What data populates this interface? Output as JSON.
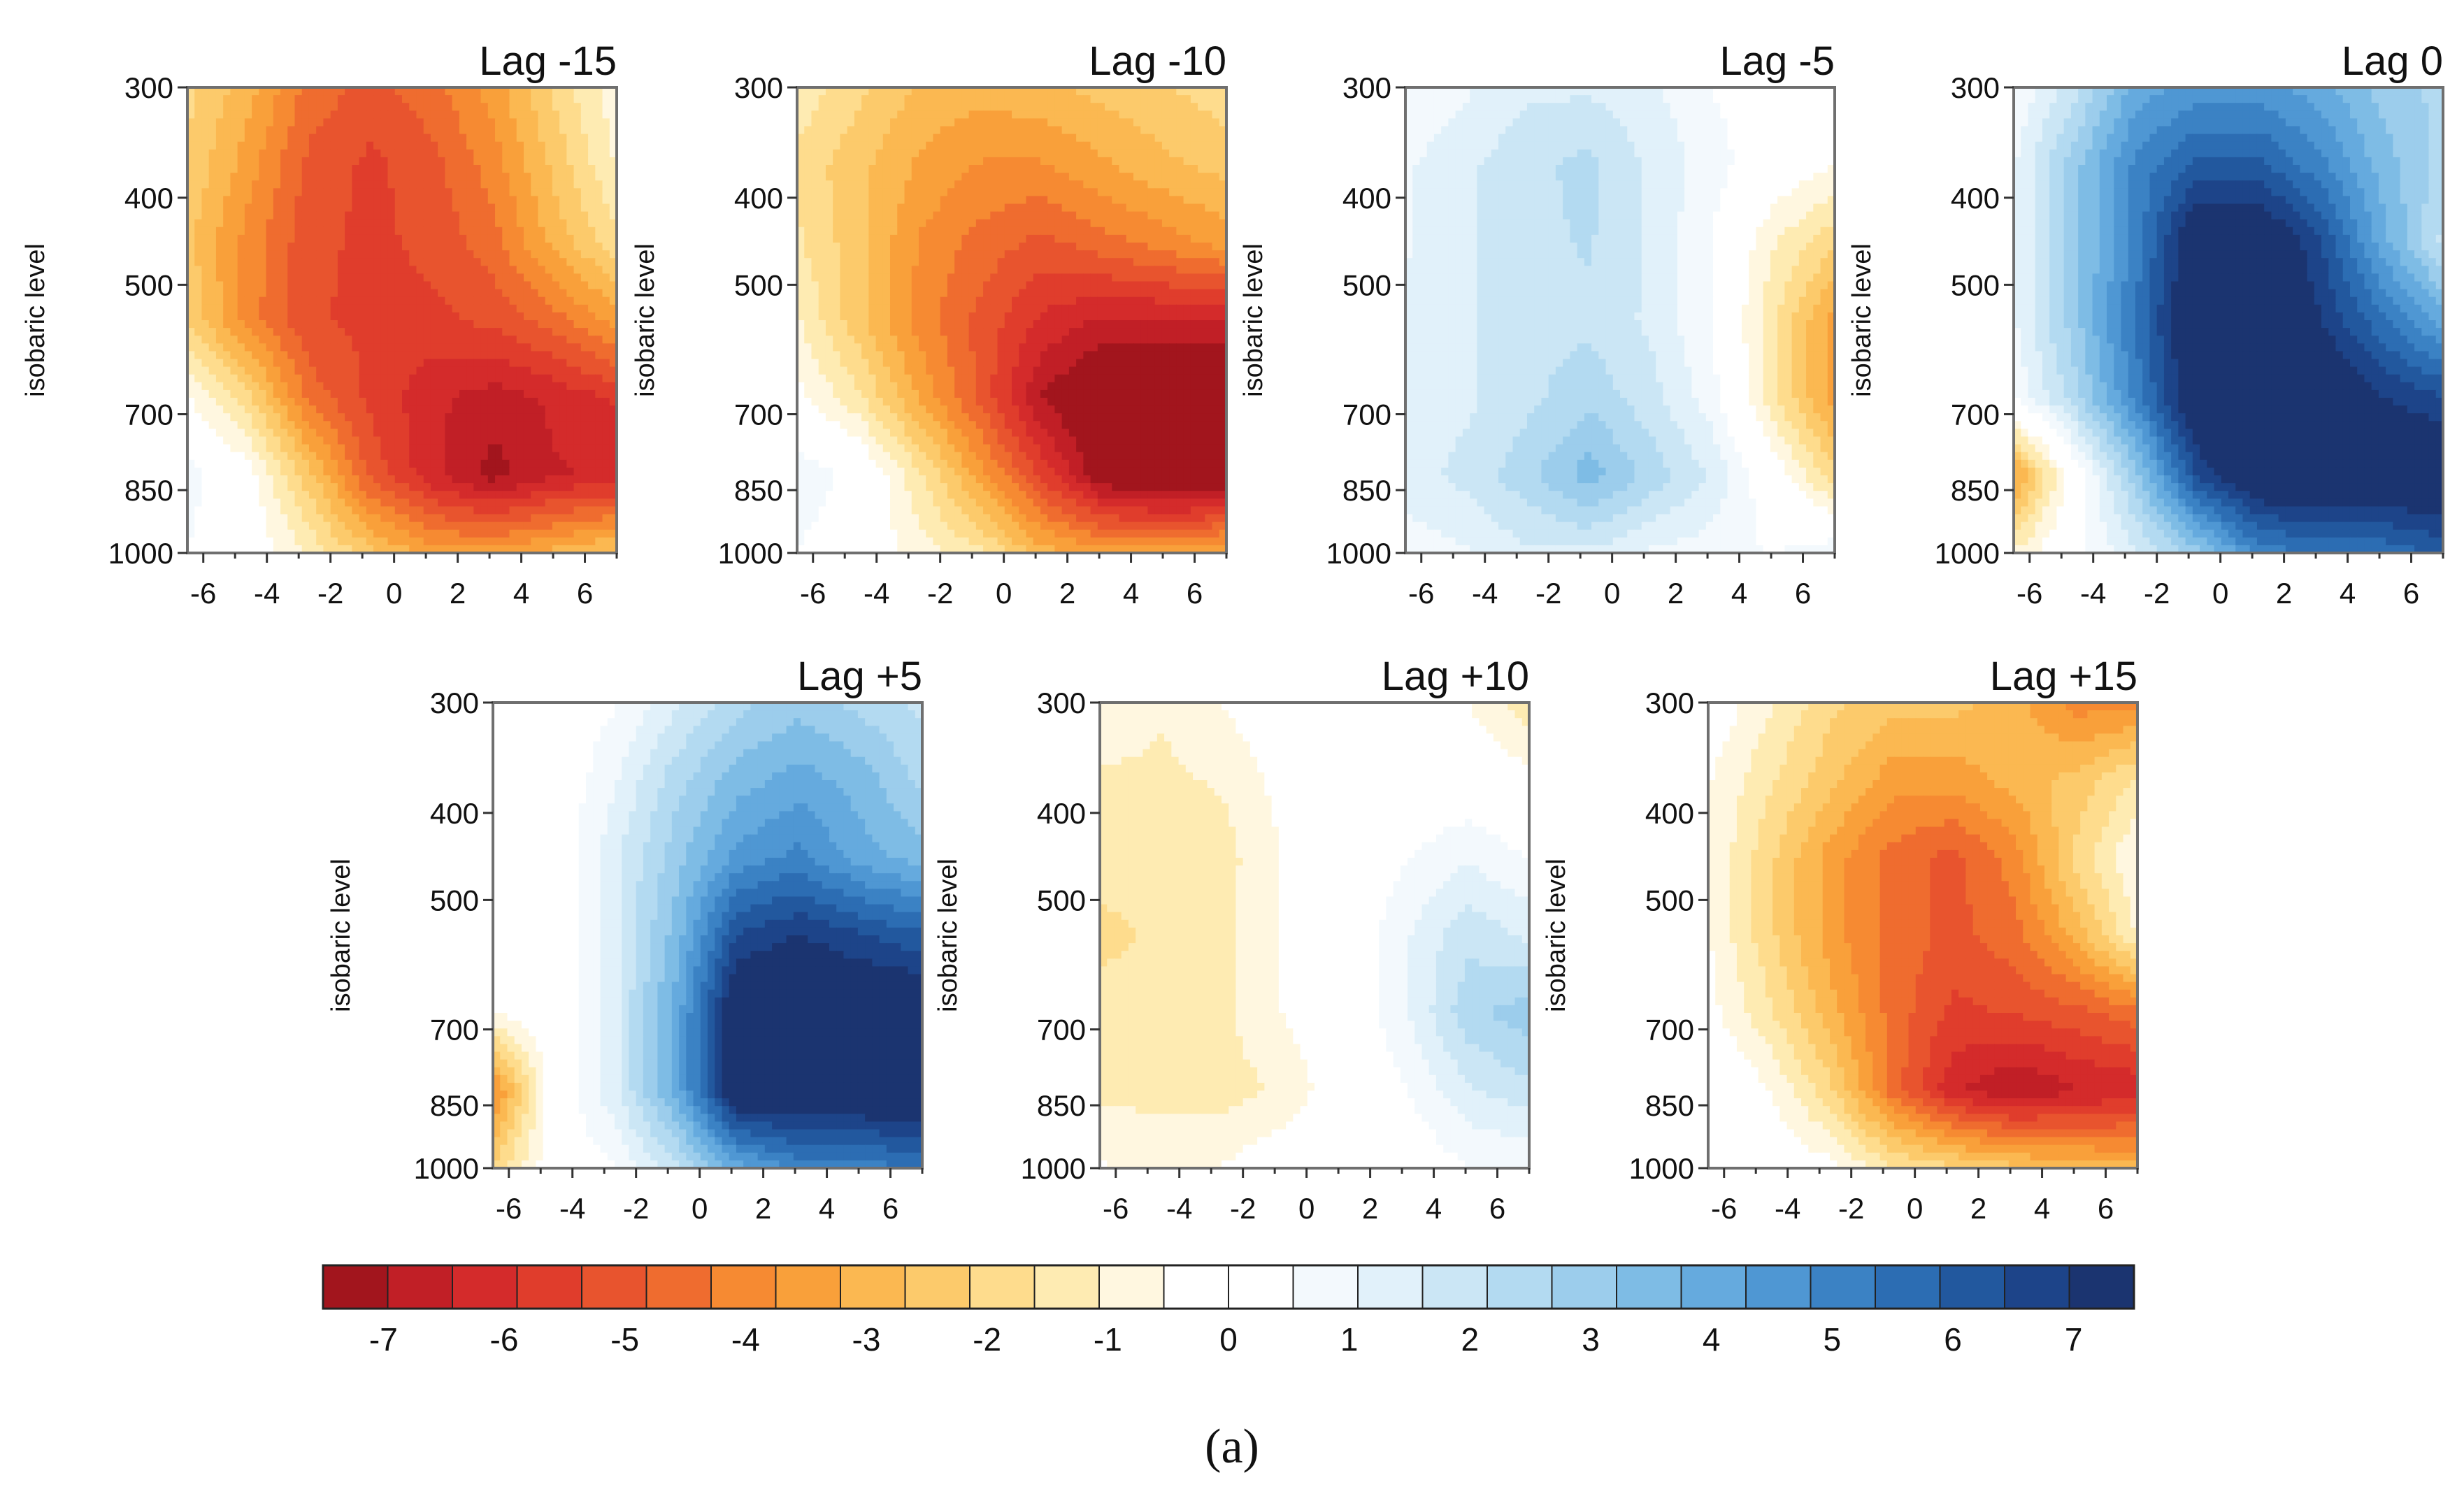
{
  "chart_data": {
    "type": "heatmap",
    "subtype": "filled-contour panel grid",
    "caption": "(a)",
    "ylabel": "isobaric level",
    "xticks": [
      -6,
      -4,
      -2,
      0,
      2,
      4,
      6
    ],
    "yticks": [
      300,
      400,
      500,
      700,
      850,
      1000
    ],
    "xlim": [
      -6.5,
      7.0
    ],
    "ylim": [
      1000,
      300
    ],
    "colorbar": {
      "ticks": [
        -7,
        -6,
        -5,
        -4,
        -3,
        -2,
        -1,
        0,
        1,
        2,
        3,
        4,
        5,
        6,
        7
      ],
      "range": [
        -7.5,
        7.5
      ],
      "colors": [
        "#a2151d",
        "#c11f26",
        "#d42b2b",
        "#e03d2c",
        "#e8542e",
        "#ef6c2f",
        "#f68a32",
        "#f9a03a",
        "#fbb851",
        "#fcca6b",
        "#fedc8d",
        "#feebb2",
        "#fff7e0",
        "#ffffff",
        "#ffffff",
        "#f3f9fd",
        "#e1f1fa",
        "#cbe6f5",
        "#b3daf1",
        "#9ccdec",
        "#7ebce5",
        "#65aade",
        "#4f97d3",
        "#3b82c4",
        "#2c6db3",
        "#22589e",
        "#1d4489",
        "#1b3470"
      ]
    },
    "panels": [
      {
        "title": "Lag -15",
        "grid": [
          [
            -2,
            -3,
            -4.5,
            -5,
            -4.5,
            -3.5,
            -2,
            -0.7
          ],
          [
            -2.2,
            -3.5,
            -5,
            -5.5,
            -5,
            -4,
            -2.5,
            -1
          ],
          [
            -2.5,
            -4,
            -5.2,
            -5.5,
            -5.2,
            -4.5,
            -3,
            -1.8
          ],
          [
            -2.2,
            -4,
            -5.3,
            -5.5,
            -5.5,
            -5.2,
            -4.5,
            -3.5
          ],
          [
            -0.5,
            -2,
            -4.5,
            -5.5,
            -6.3,
            -6.7,
            -6.3,
            -5.8
          ],
          [
            0.8,
            -0.2,
            -2.5,
            -5,
            -6.3,
            -7.2,
            -6.5,
            -6.3
          ],
          [
            0.5,
            0,
            -1.2,
            -2.5,
            -3.5,
            -3.5,
            -3,
            -2.5
          ]
        ]
      },
      {
        "title": "Lag -10",
        "grid": [
          [
            -1.2,
            -2,
            -2.8,
            -3,
            -2.8,
            -2.5,
            -2.2,
            -1.8
          ],
          [
            -1.8,
            -2.5,
            -3.3,
            -3.8,
            -3.8,
            -3.3,
            -2.8,
            -2.5
          ],
          [
            -1.5,
            -2.5,
            -3.8,
            -4.5,
            -5,
            -4.5,
            -4,
            -3.5
          ],
          [
            -1,
            -2.5,
            -4,
            -5,
            -6,
            -6.5,
            -6.5,
            -6.5
          ],
          [
            -0.3,
            -1.5,
            -3.3,
            -5,
            -7,
            -8,
            -8,
            -8
          ],
          [
            1,
            0.3,
            -1.5,
            -3.5,
            -5.5,
            -7.5,
            -8,
            -8
          ],
          [
            0.5,
            0,
            -0.8,
            -1.5,
            -3,
            -3.5,
            -3.5,
            -3
          ]
        ]
      },
      {
        "title": "Lag -5",
        "grid": [
          [
            0.5,
            1,
            1.5,
            1.5,
            1.2,
            0.5,
            0.3,
            0.3
          ],
          [
            1,
            1.5,
            2,
            2.3,
            1.5,
            0.8,
            0,
            -0.5
          ],
          [
            1,
            1.5,
            2,
            2.2,
            1.5,
            0.5,
            -1,
            -2
          ],
          [
            1.2,
            1.5,
            2,
            2,
            1.5,
            0.5,
            -1.5,
            -3.5
          ],
          [
            1.3,
            1.5,
            2,
            2.5,
            1.8,
            0.8,
            -1.5,
            -3.5
          ],
          [
            1.3,
            1.8,
            2.5,
            3.5,
            2.5,
            1.5,
            0,
            -2
          ],
          [
            0.8,
            1,
            1.5,
            1.5,
            1,
            0.8,
            0.5,
            1
          ]
        ]
      },
      {
        "title": "Lag 0",
        "grid": [
          [
            0.5,
            2,
            4,
            4.5,
            4.5,
            4,
            3,
            2.5
          ],
          [
            1,
            3,
            5,
            6,
            6,
            5,
            3.5,
            2.5
          ],
          [
            1,
            3,
            5,
            8,
            8,
            6.5,
            4,
            2
          ],
          [
            1,
            3,
            5.5,
            8,
            8,
            7,
            5.5,
            4
          ],
          [
            0.5,
            2.5,
            5,
            8,
            8,
            8,
            7,
            6.5
          ],
          [
            -3.5,
            0,
            3,
            6.5,
            8,
            8,
            8,
            8
          ],
          [
            -1,
            0.3,
            1.5,
            3,
            5,
            5.5,
            5.5,
            6
          ]
        ]
      },
      {
        "title": "Lag +5",
        "grid": [
          [
            0,
            0,
            0.5,
            1.5,
            2.5,
            3,
            2.5,
            2
          ],
          [
            0,
            0,
            1,
            2.5,
            3.5,
            4,
            3.5,
            2.5
          ],
          [
            -0.2,
            0,
            1.5,
            3,
            4.5,
            5,
            4,
            3.5
          ],
          [
            0,
            0,
            1.5,
            3.5,
            6.5,
            7,
            6.5,
            6
          ],
          [
            -0.5,
            0,
            1.5,
            4,
            8,
            8,
            8,
            8
          ],
          [
            -4,
            0,
            1.5,
            4,
            8,
            8,
            8,
            8
          ],
          [
            -2,
            0,
            0.5,
            2,
            4,
            5,
            5,
            5.5
          ]
        ]
      },
      {
        "title": "Lag +10",
        "grid": [
          [
            -0.5,
            -1,
            -0.5,
            0,
            0,
            0,
            -0.5,
            -1.5
          ],
          [
            -1.2,
            -1.2,
            -1,
            -0.3,
            0,
            0,
            0,
            -0.3
          ],
          [
            -1.3,
            -1.3,
            -1.3,
            -0.5,
            0,
            0.5,
            1,
            0.5
          ],
          [
            -1.8,
            -1.5,
            -1.2,
            -0.5,
            0,
            1,
            2,
            1.5
          ],
          [
            -1.3,
            -1.3,
            -1.2,
            -0.5,
            0,
            1,
            2.5,
            3
          ],
          [
            -1.2,
            -1.3,
            -1.3,
            -1,
            0,
            0.5,
            1.5,
            2
          ],
          [
            -0.5,
            -0.5,
            -0.5,
            0,
            0,
            0,
            0.5,
            0.5
          ]
        ]
      },
      {
        "title": "Lag +15",
        "grid": [
          [
            0,
            -1,
            -2,
            -2.5,
            -2.5,
            -3,
            -4,
            -4
          ],
          [
            -0.5,
            -1.5,
            -2.5,
            -3.5,
            -3.5,
            -3,
            -2.5,
            -1.5
          ],
          [
            -0.5,
            -2,
            -3.5,
            -4.5,
            -5,
            -4,
            -2,
            -0.5
          ],
          [
            -0.5,
            -2,
            -3.5,
            -4.5,
            -5,
            -4.5,
            -3,
            -1
          ],
          [
            -0.3,
            -1.5,
            -3,
            -4.5,
            -5.5,
            -5.3,
            -5,
            -4.5
          ],
          [
            0.3,
            -0.5,
            -2,
            -4.5,
            -6.3,
            -7,
            -6.5,
            -6.3
          ],
          [
            0,
            0,
            -0.3,
            -1.5,
            -2,
            -2.5,
            -2.8,
            -3
          ]
        ]
      }
    ]
  }
}
